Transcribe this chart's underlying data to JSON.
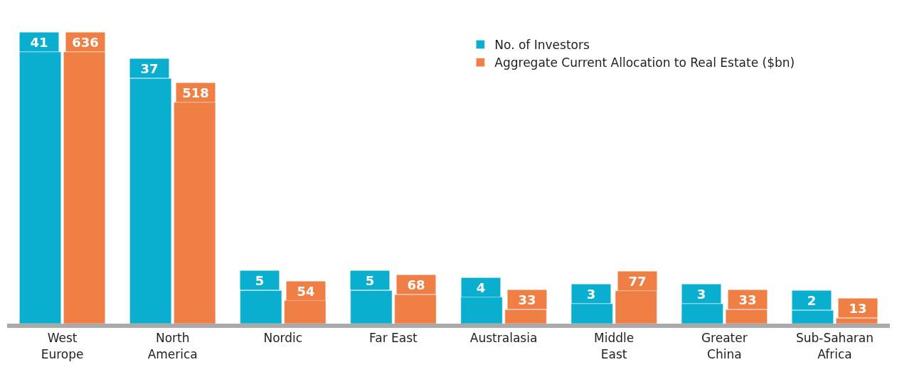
{
  "chart_data": {
    "type": "bar",
    "categories": [
      "West Europe",
      "North America",
      "Nordic",
      "Far East",
      "Australasia",
      "Middle East",
      "Greater China",
      "Sub-Saharan Africa"
    ],
    "series": [
      {
        "name": "No. of Investors",
        "color": "#0aafcf",
        "values": [
          41,
          37,
          5,
          5,
          4,
          3,
          3,
          2
        ]
      },
      {
        "name": "Aggregate Current Allocation to Real Estate ($bn)",
        "color": "#f07f45",
        "values": [
          636,
          518,
          54,
          68,
          33,
          77,
          33,
          13
        ],
        "axis": "y2"
      }
    ],
    "tick_labels": "x",
    "data_labels": true,
    "legend": "top right"
  }
}
